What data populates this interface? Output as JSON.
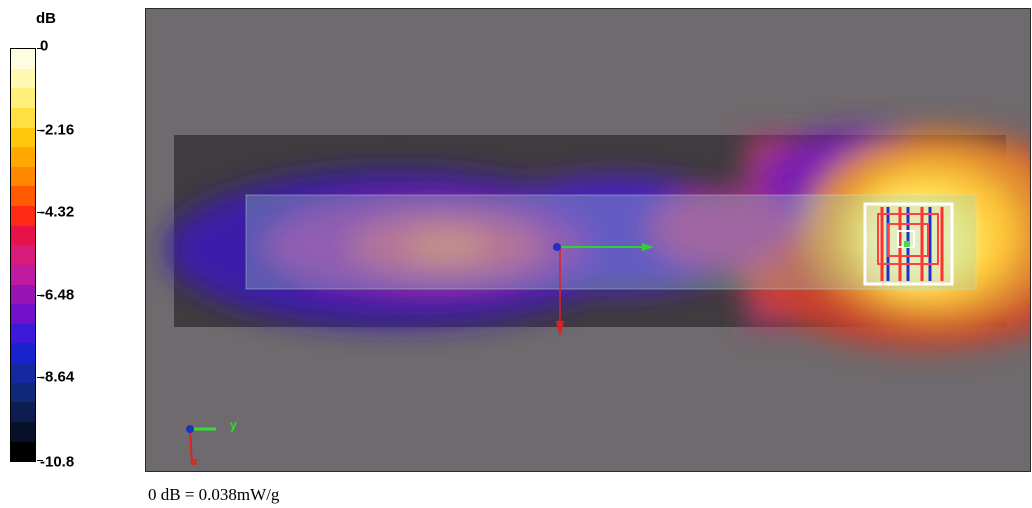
{
  "legend": {
    "unit": "dB",
    "ticks": [
      "0",
      "-2.16",
      "-4.32",
      "-6.48",
      "-8.64",
      "-10.8"
    ],
    "colors": [
      "#fffde0",
      "#fff8b0",
      "#fff07a",
      "#ffe040",
      "#ffc80a",
      "#ffa800",
      "#ff8800",
      "#ff5a00",
      "#ff2a14",
      "#e8124a",
      "#d81a7a",
      "#c01aa0",
      "#9814b4",
      "#7010c8",
      "#3c1ad8",
      "#1a22cc",
      "#1628a0",
      "#10287a",
      "#0c1e50",
      "#061028",
      "#000000"
    ]
  },
  "axis_triad": {
    "y_label": "y",
    "x_label": "x"
  },
  "caption": "0 dB = 0.038mW/g"
}
